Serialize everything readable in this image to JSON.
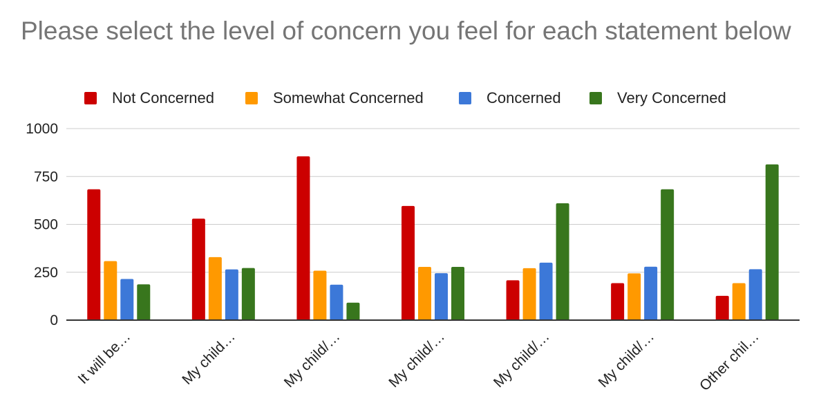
{
  "chart_data": {
    "type": "bar",
    "title": "Please select the level of concern you feel for each statement below",
    "categories": [
      "It will be…",
      "My child…",
      "My child/…",
      "My child/…",
      "My child/…",
      "My child/…",
      "Other chil…"
    ],
    "series": [
      {
        "name": "Not Concerned",
        "color": "#cc0000",
        "values": [
          683,
          530,
          855,
          596,
          208,
          193,
          127
        ]
      },
      {
        "name": "Somewhat Concerned",
        "color": "#ff9900",
        "values": [
          308,
          329,
          258,
          278,
          271,
          244,
          193
        ]
      },
      {
        "name": "Concerned",
        "color": "#3c78d8",
        "values": [
          215,
          265,
          185,
          245,
          300,
          279,
          266
        ]
      },
      {
        "name": "Very Concerned",
        "color": "#38761d",
        "values": [
          187,
          272,
          91,
          278,
          610,
          683,
          813
        ]
      }
    ],
    "ylim": [
      0,
      1000
    ],
    "yticks": [
      0,
      250,
      500,
      750,
      1000
    ],
    "xlabel": "",
    "ylabel": "",
    "grid": true,
    "legend_position": "top"
  }
}
